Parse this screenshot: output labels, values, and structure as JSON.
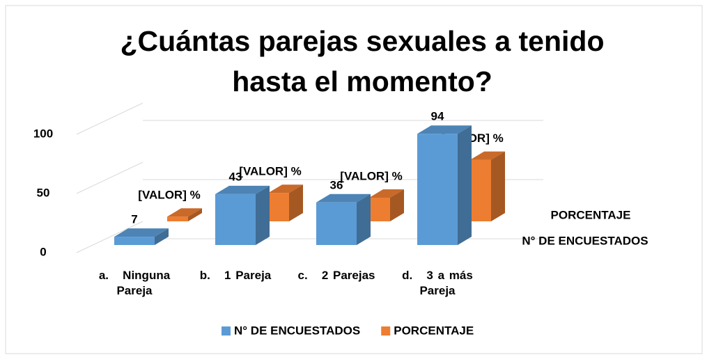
{
  "chart_data": {
    "type": "bar3d",
    "title": "¿Cuántas parejas sexuales a tenido hasta el momento?",
    "categories": [
      "a.   Ninguna Pareja",
      "b.   1 Pareja",
      "c.   2 Parejas",
      "d.   3 a más Pareja"
    ],
    "series": [
      {
        "name": "N° DE ENCUESTADOS",
        "color": "#5b9bd5",
        "values": [
          7,
          43,
          36,
          94
        ]
      },
      {
        "name": "PORCENTAJE",
        "color": "#ed7d31",
        "values": [
          4,
          24,
          20,
          52
        ],
        "value_labels": [
          "[VALOR] %",
          "[VALOR] %",
          "[VALOR] %",
          "[VALOR] %"
        ]
      }
    ],
    "ylim": [
      0,
      100
    ],
    "yticks": [
      0,
      50,
      100
    ],
    "grid": true,
    "legend": "bottom"
  }
}
